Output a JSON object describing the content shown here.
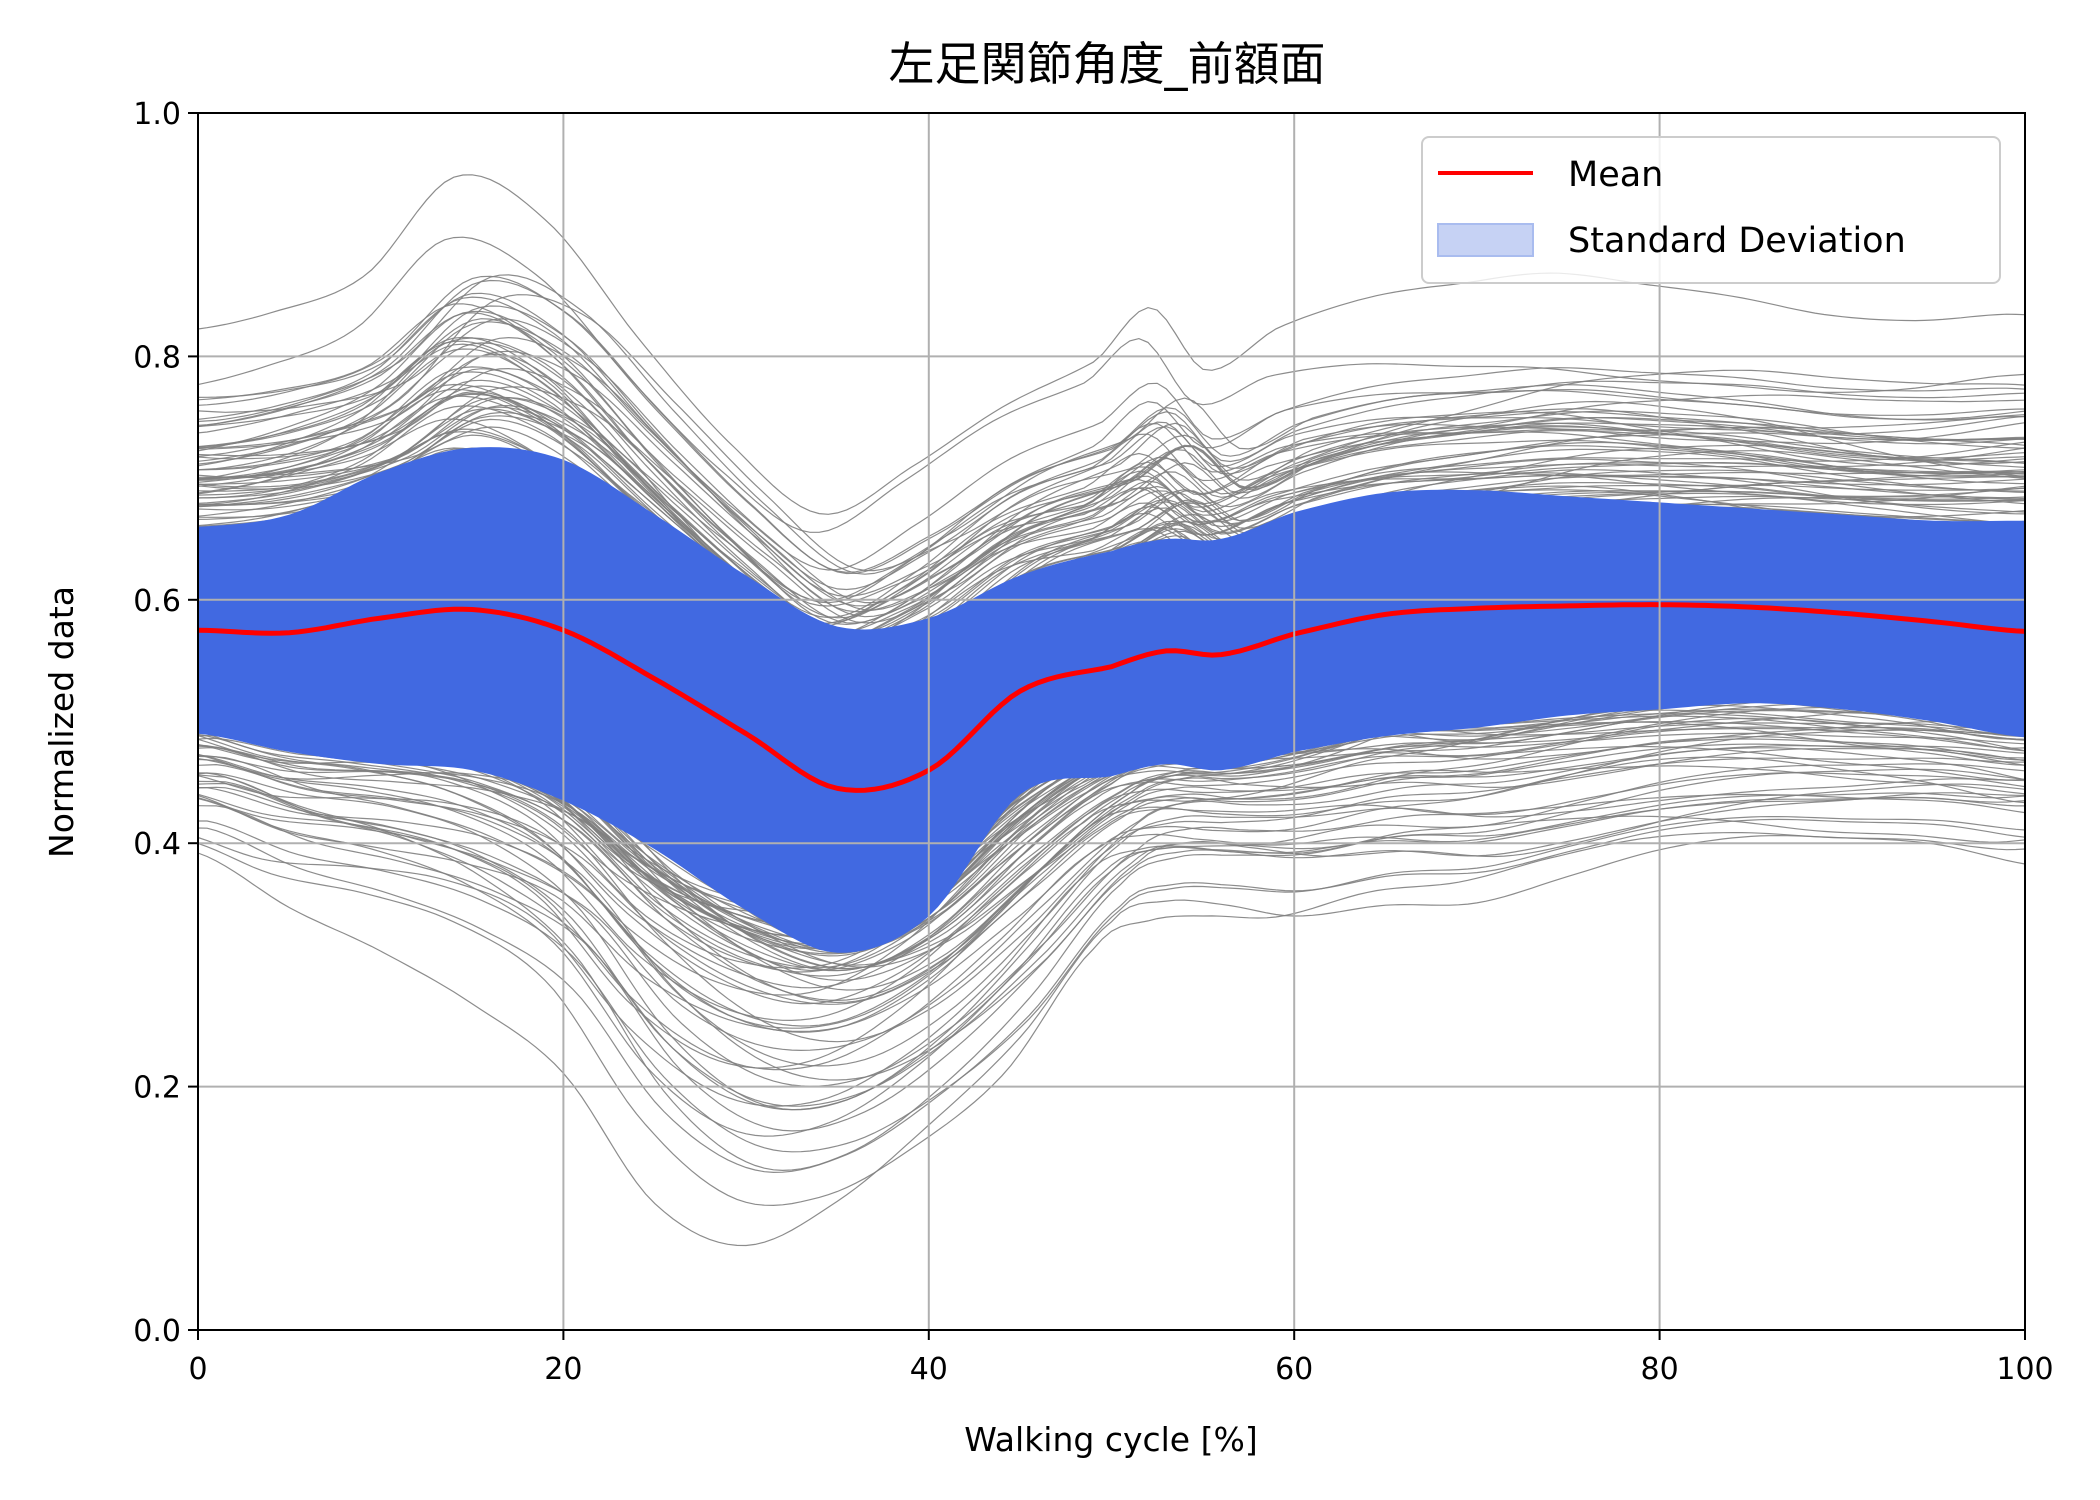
{
  "chart_data": {
    "type": "line",
    "title": "左足関節角度_前額面",
    "xlabel": "Walking cycle [%]",
    "ylabel": "Normalized data",
    "xlim": [
      0,
      100
    ],
    "ylim": [
      0,
      1.0
    ],
    "xticks": [
      0,
      20,
      40,
      60,
      80,
      100
    ],
    "yticks": [
      0.0,
      0.2,
      0.4,
      0.6,
      0.8,
      1.0
    ],
    "xtick_labels": [
      "0",
      "20",
      "40",
      "60",
      "80",
      "100"
    ],
    "ytick_labels": [
      "0.0",
      "0.2",
      "0.4",
      "0.6",
      "0.8",
      "1.0"
    ],
    "grid": true,
    "legend_position": "top-right",
    "x": [
      0,
      5,
      10,
      15,
      20,
      25,
      30,
      35,
      40,
      45,
      50,
      53,
      56,
      60,
      65,
      70,
      75,
      80,
      85,
      90,
      95,
      100
    ],
    "series": [
      {
        "name": "Mean",
        "color": "#ff0000",
        "values": [
          0.575,
          0.573,
          0.585,
          0.592,
          0.575,
          0.535,
          0.49,
          0.445,
          0.46,
          0.525,
          0.545,
          0.558,
          0.555,
          0.572,
          0.588,
          0.593,
          0.595,
          0.596,
          0.594,
          0.589,
          0.582,
          0.574
        ]
      },
      {
        "name": "Standard Deviation",
        "color": "#4169e1",
        "legend_color": "#c6d2f4",
        "upper": [
          0.66,
          0.67,
          0.705,
          0.725,
          0.715,
          0.67,
          0.62,
          0.578,
          0.585,
          0.62,
          0.64,
          0.65,
          0.65,
          0.672,
          0.688,
          0.69,
          0.685,
          0.68,
          0.675,
          0.67,
          0.665,
          0.665
        ],
        "lower": [
          0.49,
          0.475,
          0.465,
          0.46,
          0.435,
          0.395,
          0.345,
          0.31,
          0.34,
          0.44,
          0.455,
          0.465,
          0.46,
          0.475,
          0.488,
          0.495,
          0.505,
          0.51,
          0.515,
          0.51,
          0.5,
          0.487
        ]
      },
      {
        "name": "Individual trials",
        "color": "#808080",
        "count": 300,
        "center": [
          0.575,
          0.573,
          0.585,
          0.592,
          0.575,
          0.535,
          0.49,
          0.445,
          0.46,
          0.525,
          0.545,
          0.558,
          0.555,
          0.572,
          0.588,
          0.593,
          0.595,
          0.596,
          0.594,
          0.589,
          0.582,
          0.574
        ],
        "upper_envelope": [
          0.845,
          0.865,
          0.9,
          0.995,
          0.96,
          0.86,
          0.77,
          0.71,
          0.75,
          0.79,
          0.82,
          0.86,
          0.8,
          0.83,
          0.85,
          0.86,
          0.87,
          0.865,
          0.86,
          0.85,
          0.85,
          0.86
        ],
        "lower_envelope": [
          0.37,
          0.33,
          0.3,
          0.26,
          0.2,
          0.08,
          0.03,
          0.06,
          0.12,
          0.19,
          0.3,
          0.32,
          0.32,
          0.31,
          0.32,
          0.32,
          0.34,
          0.36,
          0.37,
          0.37,
          0.37,
          0.36
        ]
      }
    ]
  }
}
